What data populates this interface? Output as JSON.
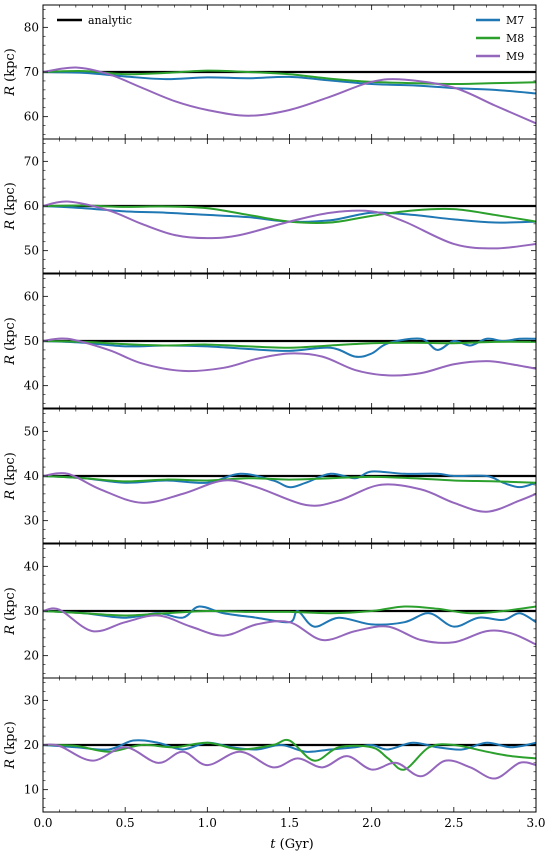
{
  "figure": {
    "xlabel_italic": "t",
    "xlabel_rest": " (Gyr)",
    "ylabel_italic": "R",
    "ylabel_rest": " (kpc)"
  },
  "legend_left": {
    "label": "analytic",
    "color": "#000000"
  },
  "legend_right": [
    {
      "label": "M7",
      "color": "#1f77b4"
    },
    {
      "label": "M8",
      "color": "#2ca02c"
    },
    {
      "label": "M9",
      "color": "#9467bd"
    }
  ],
  "chart_data": [
    {
      "type": "line",
      "panel": 1,
      "xlim": [
        0,
        3
      ],
      "ylim": [
        55,
        85
      ],
      "xticks": [
        0.0,
        0.5,
        1.0,
        1.5,
        2.0,
        2.5,
        3.0
      ],
      "yticks": [
        60,
        70,
        80
      ],
      "xlabel": "t (Gyr)",
      "ylabel": "R (kpc)",
      "series": [
        {
          "name": "analytic",
          "color": "#000000",
          "x": [
            0,
            3
          ],
          "y": [
            70,
            70
          ]
        },
        {
          "name": "M7",
          "color": "#1f77b4",
          "x": [
            0,
            0.25,
            0.5,
            0.75,
            1.0,
            1.25,
            1.5,
            1.75,
            2.0,
            2.25,
            2.5,
            2.75,
            3.0
          ],
          "y": [
            70,
            69.8,
            69,
            68.4,
            68.8,
            68.6,
            68.9,
            68.1,
            67.3,
            67.0,
            66.4,
            66.0,
            65.2
          ]
        },
        {
          "name": "M8",
          "color": "#2ca02c",
          "x": [
            0,
            0.25,
            0.5,
            0.75,
            1.0,
            1.25,
            1.5,
            1.75,
            2.0,
            2.25,
            2.5,
            2.75,
            3.0
          ],
          "y": [
            70,
            70.2,
            69.5,
            69.8,
            70.3,
            70.0,
            69.5,
            68.5,
            67.8,
            67.5,
            67.3,
            67.5,
            67.7
          ]
        },
        {
          "name": "M9",
          "color": "#9467bd",
          "x": [
            0,
            0.2,
            0.4,
            0.6,
            0.8,
            1.0,
            1.25,
            1.5,
            1.75,
            2.0,
            2.2,
            2.5,
            2.75,
            3.0
          ],
          "y": [
            70,
            71,
            69.5,
            66.5,
            63.5,
            61.5,
            60.2,
            61.5,
            64.5,
            67.8,
            68.3,
            66.5,
            62.5,
            58.5
          ]
        }
      ]
    },
    {
      "type": "line",
      "panel": 2,
      "xlim": [
        0,
        3
      ],
      "ylim": [
        45,
        75
      ],
      "xticks": [
        0.0,
        0.5,
        1.0,
        1.5,
        2.0,
        2.5,
        3.0
      ],
      "yticks": [
        50,
        60,
        70
      ],
      "xlabel": "t (Gyr)",
      "ylabel": "R (kpc)",
      "series": [
        {
          "name": "analytic",
          "color": "#000000",
          "x": [
            0,
            3
          ],
          "y": [
            60,
            60
          ]
        },
        {
          "name": "M7",
          "color": "#1f77b4",
          "x": [
            0,
            0.25,
            0.5,
            0.75,
            1.0,
            1.25,
            1.5,
            1.75,
            2.0,
            2.25,
            2.5,
            2.75,
            3.0
          ],
          "y": [
            60,
            59.5,
            58.8,
            58.5,
            58.0,
            57.5,
            56.5,
            56.8,
            58.5,
            58.0,
            57.0,
            56.3,
            56.5
          ]
        },
        {
          "name": "M8",
          "color": "#2ca02c",
          "x": [
            0,
            0.25,
            0.5,
            0.75,
            1.0,
            1.25,
            1.5,
            1.75,
            2.0,
            2.25,
            2.5,
            2.75,
            3.0
          ],
          "y": [
            60,
            60.1,
            59.8,
            59.9,
            59.5,
            58.0,
            56.5,
            56.3,
            57.8,
            59.0,
            59.3,
            58.0,
            56.5
          ]
        },
        {
          "name": "M9",
          "color": "#9467bd",
          "x": [
            0,
            0.15,
            0.4,
            0.6,
            0.8,
            1.0,
            1.2,
            1.5,
            1.75,
            2.0,
            2.2,
            2.5,
            2.75,
            3.0
          ],
          "y": [
            60,
            61,
            59,
            56,
            53.5,
            52.8,
            53.5,
            56.5,
            58.5,
            58.8,
            56.5,
            51.5,
            50.5,
            51.5
          ]
        }
      ]
    },
    {
      "type": "line",
      "panel": 3,
      "xlim": [
        0,
        3
      ],
      "ylim": [
        35,
        65
      ],
      "xticks": [
        0.0,
        0.5,
        1.0,
        1.5,
        2.0,
        2.5,
        3.0
      ],
      "yticks": [
        40,
        50,
        60
      ],
      "xlabel": "t (Gyr)",
      "ylabel": "R (kpc)",
      "series": [
        {
          "name": "analytic",
          "color": "#000000",
          "x": [
            0,
            3
          ],
          "y": [
            50,
            50
          ]
        },
        {
          "name": "M7",
          "color": "#1f77b4",
          "x": [
            0,
            0.25,
            0.5,
            0.75,
            1.0,
            1.25,
            1.5,
            1.75,
            1.9,
            2.0,
            2.1,
            2.3,
            2.4,
            2.5,
            2.6,
            2.7,
            2.8,
            2.9,
            3.0
          ],
          "y": [
            50,
            49.6,
            48.8,
            49.0,
            48.8,
            48.2,
            47.8,
            48.5,
            46.5,
            47.2,
            49.5,
            50.5,
            48.0,
            50.0,
            49.0,
            50.5,
            50.0,
            50.5,
            50.5
          ]
        },
        {
          "name": "M8",
          "color": "#2ca02c",
          "x": [
            0,
            0.25,
            0.5,
            0.75,
            1.0,
            1.25,
            1.5,
            1.75,
            2.0,
            2.25,
            2.5,
            2.75,
            3.0
          ],
          "y": [
            50,
            49.8,
            49.3,
            49.0,
            49.2,
            48.8,
            48.5,
            49.0,
            49.5,
            49.6,
            49.5,
            49.8,
            49.8
          ]
        },
        {
          "name": "M9",
          "color": "#9467bd",
          "x": [
            0,
            0.15,
            0.4,
            0.6,
            0.85,
            1.1,
            1.3,
            1.5,
            1.7,
            1.9,
            2.1,
            2.3,
            2.5,
            2.7,
            2.85,
            3.0
          ],
          "y": [
            50,
            50.5,
            48,
            45,
            43.3,
            44,
            46,
            47.2,
            46.5,
            43.5,
            42.3,
            42.8,
            44.8,
            45.5,
            44.8,
            43.8
          ]
        }
      ]
    },
    {
      "type": "line",
      "panel": 4,
      "xlim": [
        0,
        3
      ],
      "ylim": [
        25,
        55
      ],
      "xticks": [
        0.0,
        0.5,
        1.0,
        1.5,
        2.0,
        2.5,
        3.0
      ],
      "yticks": [
        30,
        40,
        50
      ],
      "xlabel": "t (Gyr)",
      "ylabel": "R (kpc)",
      "series": [
        {
          "name": "analytic",
          "color": "#000000",
          "x": [
            0,
            3
          ],
          "y": [
            40,
            40
          ]
        },
        {
          "name": "M7",
          "color": "#1f77b4",
          "x": [
            0,
            0.25,
            0.5,
            0.75,
            1.0,
            1.2,
            1.4,
            1.5,
            1.6,
            1.75,
            1.9,
            2.0,
            2.2,
            2.4,
            2.5,
            2.7,
            2.8,
            2.9,
            3.0
          ],
          "y": [
            40,
            39.5,
            38.5,
            39.0,
            38.5,
            40.5,
            39.0,
            37.5,
            38.5,
            40.5,
            39.5,
            41.0,
            40.5,
            40.5,
            40.0,
            40.0,
            38.5,
            37.5,
            38.5
          ]
        },
        {
          "name": "M8",
          "color": "#2ca02c",
          "x": [
            0,
            0.25,
            0.5,
            0.75,
            1.0,
            1.25,
            1.5,
            1.75,
            2.0,
            2.25,
            2.5,
            2.75,
            3.0
          ],
          "y": [
            40,
            39.5,
            38.8,
            39.2,
            39.0,
            39.5,
            39.2,
            39.5,
            39.8,
            39.5,
            39.0,
            38.8,
            38.5
          ]
        },
        {
          "name": "M9",
          "color": "#9467bd",
          "x": [
            0,
            0.15,
            0.35,
            0.6,
            0.85,
            1.1,
            1.3,
            1.6,
            1.8,
            2.05,
            2.3,
            2.5,
            2.7,
            2.9,
            3.0
          ],
          "y": [
            40,
            40.5,
            37,
            34,
            36,
            39,
            37.5,
            33.5,
            34.5,
            38,
            37,
            34,
            32,
            34.5,
            36
          ]
        }
      ]
    },
    {
      "type": "line",
      "panel": 5,
      "xlim": [
        0,
        3
      ],
      "ylim": [
        15,
        45
      ],
      "xticks": [
        0.0,
        0.5,
        1.0,
        1.5,
        2.0,
        2.5,
        3.0
      ],
      "yticks": [
        20,
        30,
        40
      ],
      "xlabel": "t (Gyr)",
      "ylabel": "R (kpc)",
      "series": [
        {
          "name": "analytic",
          "color": "#000000",
          "x": [
            0,
            3
          ],
          "y": [
            30,
            30
          ]
        },
        {
          "name": "M7",
          "color": "#1f77b4",
          "x": [
            0,
            0.25,
            0.5,
            0.7,
            0.85,
            0.95,
            1.1,
            1.3,
            1.5,
            1.55,
            1.65,
            1.8,
            2.0,
            2.2,
            2.35,
            2.5,
            2.65,
            2.8,
            2.9,
            3.0
          ],
          "y": [
            30,
            29.5,
            28.5,
            29.5,
            28.5,
            31.0,
            29.5,
            28.5,
            27.5,
            30.0,
            26.5,
            28.5,
            27.0,
            27.5,
            29.5,
            26.5,
            28.5,
            28.0,
            29.5,
            27.5
          ]
        },
        {
          "name": "M8",
          "color": "#2ca02c",
          "x": [
            0,
            0.25,
            0.5,
            0.75,
            1.0,
            1.25,
            1.5,
            1.75,
            2.0,
            2.2,
            2.4,
            2.6,
            2.8,
            3.0
          ],
          "y": [
            30,
            29.5,
            29.0,
            29.5,
            30.0,
            29.8,
            29.8,
            29.5,
            30.0,
            31.0,
            30.5,
            29.5,
            30.0,
            31.0
          ]
        },
        {
          "name": "M9",
          "color": "#9467bd",
          "x": [
            0,
            0.1,
            0.3,
            0.5,
            0.7,
            0.9,
            1.1,
            1.3,
            1.5,
            1.7,
            1.9,
            2.1,
            2.3,
            2.5,
            2.7,
            2.85,
            3.0
          ],
          "y": [
            30,
            30.3,
            25.5,
            27.5,
            29,
            26.5,
            24.5,
            27.0,
            27.5,
            23.5,
            25.5,
            26.5,
            23.5,
            23.0,
            25.5,
            25.0,
            22.5
          ]
        }
      ]
    },
    {
      "type": "line",
      "panel": 6,
      "xlim": [
        0,
        3
      ],
      "ylim": [
        5,
        35
      ],
      "xticks": [
        0.0,
        0.5,
        1.0,
        1.5,
        2.0,
        2.5,
        3.0
      ],
      "yticks": [
        10,
        20,
        30
      ],
      "xlabel": "t (Gyr)",
      "ylabel": "R (kpc)",
      "series": [
        {
          "name": "analytic",
          "color": "#000000",
          "x": [
            0,
            3
          ],
          "y": [
            20,
            20
          ]
        },
        {
          "name": "M7",
          "color": "#1f77b4",
          "x": [
            0,
            0.2,
            0.4,
            0.55,
            0.7,
            0.85,
            1.0,
            1.15,
            1.3,
            1.45,
            1.6,
            1.75,
            1.9,
            2.0,
            2.1,
            2.25,
            2.4,
            2.55,
            2.7,
            2.85,
            3.0
          ],
          "y": [
            20,
            19.5,
            19.0,
            21.0,
            20.5,
            19.0,
            20.5,
            19.5,
            19.0,
            20.0,
            18.5,
            19.0,
            19.5,
            20.0,
            19.0,
            20.5,
            19.5,
            19.0,
            20.5,
            19.5,
            20.5
          ]
        },
        {
          "name": "M8",
          "color": "#2ca02c",
          "x": [
            0,
            0.2,
            0.4,
            0.6,
            0.8,
            1.0,
            1.2,
            1.4,
            1.5,
            1.65,
            1.8,
            2.0,
            2.1,
            2.2,
            2.35,
            2.5,
            2.7,
            2.85,
            3.0
          ],
          "y": [
            20,
            19.8,
            18.5,
            20.0,
            19.5,
            20.5,
            19.0,
            20.0,
            21.0,
            16.5,
            19.5,
            19.5,
            17.0,
            14.5,
            19.5,
            20.0,
            18.5,
            17.5,
            17.0
          ]
        },
        {
          "name": "M9",
          "color": "#9467bd",
          "x": [
            0,
            0.1,
            0.3,
            0.5,
            0.7,
            0.85,
            1.0,
            1.2,
            1.4,
            1.55,
            1.7,
            1.85,
            2.0,
            2.15,
            2.3,
            2.45,
            2.6,
            2.75,
            2.9,
            3.0
          ],
          "y": [
            20,
            19.8,
            16.5,
            19.5,
            16.0,
            18.5,
            15.5,
            18.5,
            15.0,
            17.0,
            15.0,
            17.5,
            14.5,
            16.0,
            13.0,
            16.5,
            15.0,
            12.5,
            16.0,
            15.5
          ]
        }
      ]
    }
  ]
}
